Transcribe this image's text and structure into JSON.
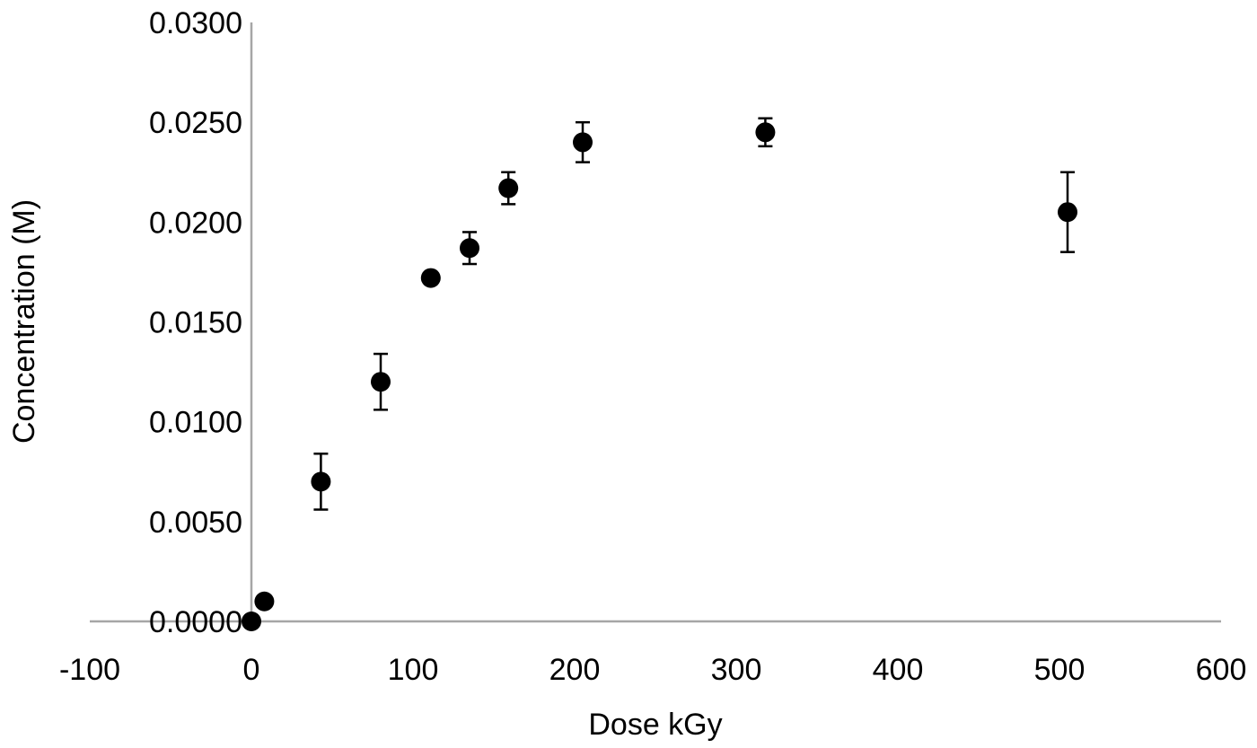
{
  "chart_data": {
    "type": "scatter",
    "xlabel": "Dose kGy",
    "ylabel": "Concentration (M)",
    "xlim": [
      -100,
      600
    ],
    "ylim": [
      0,
      0.03
    ],
    "x_ticks": [
      -100,
      0,
      100,
      200,
      300,
      400,
      500,
      600
    ],
    "y_ticks": [
      0,
      0.005,
      0.01,
      0.015,
      0.02,
      0.025,
      0.03
    ],
    "x_tick_labels": [
      "-100",
      "0",
      "100",
      "200",
      "300",
      "400",
      "500",
      "600"
    ],
    "y_tick_labels": [
      "0.0000",
      "0.0050",
      "0.0100",
      "0.0150",
      "0.0200",
      "0.0250",
      "0.0300"
    ],
    "grid": false,
    "marker_color": "#000000",
    "axis_color": "#a6a6a6",
    "points": [
      {
        "x": 0,
        "y": 0.0,
        "err": 0
      },
      {
        "x": 8,
        "y": 0.001,
        "err": 0
      },
      {
        "x": 43,
        "y": 0.007,
        "err": 0.0014
      },
      {
        "x": 80,
        "y": 0.012,
        "err": 0.0014
      },
      {
        "x": 111,
        "y": 0.0172,
        "err": 0
      },
      {
        "x": 135,
        "y": 0.0187,
        "err": 0.0008
      },
      {
        "x": 159,
        "y": 0.0217,
        "err": 0.0008
      },
      {
        "x": 205,
        "y": 0.024,
        "err": 0.001
      },
      {
        "x": 318,
        "y": 0.0245,
        "err": 0.0007
      },
      {
        "x": 505,
        "y": 0.0205,
        "err": 0.002
      }
    ]
  }
}
